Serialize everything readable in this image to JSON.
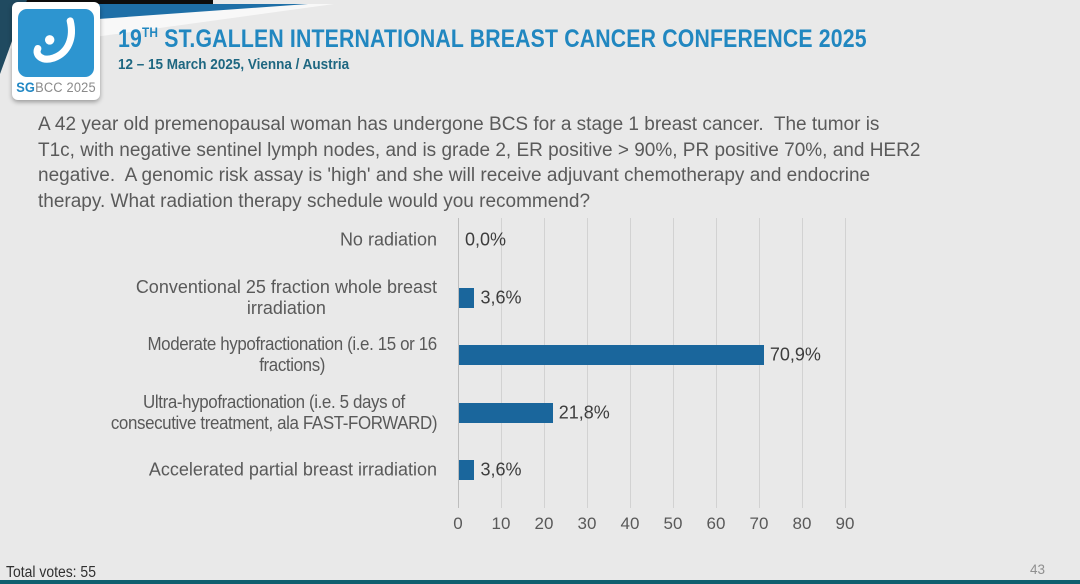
{
  "slide": {
    "logo": {
      "sg": "SG",
      "rest": "BCC 2025"
    },
    "header": {
      "title_number": "19",
      "title_ordinal": "TH",
      "title_text": " ST.GALLEN INTERNATIONAL BREAST CANCER CONFERENCE 2025",
      "subtitle": "12 – 15 March 2025, Vienna / Austria"
    },
    "question_lines": [
      "A 42 year old premenopausal woman has undergone BCS for a stage 1 breast cancer.  The tumor is",
      "T1c, with negative sentinel lymph nodes, and is grade 2, ER positive > 90%, PR positive 70%, and HER2",
      "negative.  A genomic risk assay is 'high' and she will receive adjuvant chemotherapy and endocrine",
      "therapy. What radiation therapy schedule would you recommend?"
    ],
    "footer": {
      "total_votes_label": "Total votes: 55",
      "page_number": "43"
    }
  },
  "chart_data": {
    "type": "bar",
    "orientation": "horizontal",
    "title": "",
    "categories": [
      "No radiation",
      "Conventional 25 fraction whole breast irradiation",
      "Moderate hypofractionation (i.e. 15 or 16 fractions)",
      "Ultra-hypofractionation (i.e. 5 days of consecutive treatment, ala FAST-FORWARD)",
      "Accelerated partial breast irradiation"
    ],
    "category_lines": [
      [
        "No radiation"
      ],
      [
        "Conventional 25 fraction whole breast",
        "irradiation"
      ],
      [
        "Moderate hypofractionation (i.e. 15 or 16",
        "fractions)"
      ],
      [
        "Ultra-hypofractionation (i.e. 5 days of",
        "consecutive treatment, ala FAST-FORWARD)"
      ],
      [
        "Accelerated partial breast irradiation"
      ]
    ],
    "condensed_labels": [
      false,
      false,
      true,
      true,
      false
    ],
    "values": [
      0.0,
      3.6,
      70.9,
      21.8,
      3.6
    ],
    "value_labels": [
      "0,0%",
      "3,6%",
      "70,9%",
      "21,8%",
      "3,6%"
    ],
    "xlim": [
      0,
      90
    ],
    "xticks": [
      0,
      10,
      20,
      30,
      40,
      50,
      60,
      70,
      80,
      90
    ],
    "grid": true,
    "legend": false,
    "bar_color": "#1a669c",
    "total_votes": 55
  },
  "colors": {
    "background": "#e9e9e9",
    "title_blue": "#2187c0",
    "subtitle_teal": "#1e6781",
    "question_text": "#5a5a5a",
    "bar_blue": "#1a669c",
    "gridline": "#d2d2d2",
    "logo_blue": "#2d95d0",
    "ribbon_blue": "#1e6fa7",
    "ribbon_navy": "#204a60",
    "bottom_strip_teal": "#0f5f6f"
  }
}
